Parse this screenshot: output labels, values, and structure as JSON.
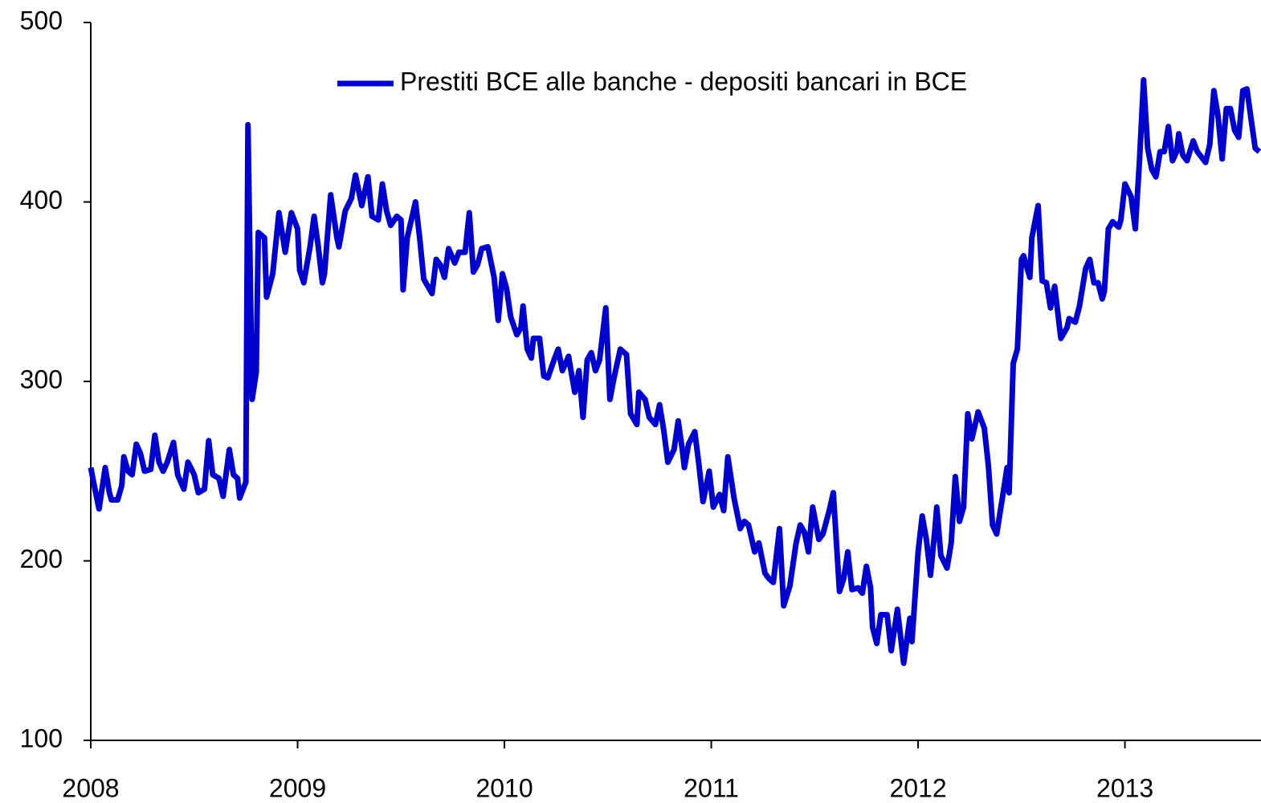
{
  "chart_data": {
    "type": "line",
    "x": [
      2008.0,
      2008.02,
      2008.04,
      2008.07,
      2008.09,
      2008.1,
      2008.13,
      2008.15,
      2008.16,
      2008.18,
      2008.2,
      2008.22,
      2008.24,
      2008.26,
      2008.29,
      2008.31,
      2008.33,
      2008.35,
      2008.37,
      2008.4,
      2008.42,
      2008.45,
      2008.47,
      2008.5,
      2008.52,
      2008.55,
      2008.57,
      2008.59,
      2008.62,
      2008.64,
      2008.67,
      2008.69,
      2008.71,
      2008.72,
      2008.75,
      2008.76,
      2008.78,
      2008.8,
      2008.81,
      2008.84,
      2008.85,
      2008.88,
      2008.91,
      2008.94,
      2008.97,
      2009.0,
      2009.01,
      2009.03,
      2009.06,
      2009.08,
      2009.1,
      2009.12,
      2009.13,
      2009.16,
      2009.19,
      2009.2,
      2009.23,
      2009.26,
      2009.28,
      2009.31,
      2009.34,
      2009.36,
      2009.39,
      2009.41,
      2009.43,
      2009.45,
      2009.48,
      2009.5,
      2009.51,
      2009.53,
      2009.57,
      2009.59,
      2009.61,
      2009.65,
      2009.67,
      2009.69,
      2009.71,
      2009.73,
      2009.76,
      2009.78,
      2009.81,
      2009.83,
      2009.85,
      2009.87,
      2009.89,
      2009.92,
      2009.95,
      2009.97,
      2009.99,
      2010.01,
      2010.03,
      2010.06,
      2010.08,
      2010.09,
      2010.11,
      2010.13,
      2010.14,
      2010.17,
      2010.19,
      2010.21,
      2010.24,
      2010.26,
      2010.28,
      2010.31,
      2010.32,
      2010.34,
      2010.36,
      2010.38,
      2010.4,
      2010.42,
      2010.44,
      2010.46,
      2010.49,
      2010.51,
      2010.53,
      2010.56,
      2010.59,
      2010.61,
      2010.64,
      2010.65,
      2010.68,
      2010.7,
      2010.73,
      2010.75,
      2010.77,
      2010.79,
      2010.82,
      2010.84,
      2010.86,
      2010.87,
      2010.89,
      2010.92,
      2010.94,
      2010.96,
      2010.99,
      2011.01,
      2011.04,
      2011.06,
      2011.08,
      2011.11,
      2011.14,
      2011.16,
      2011.18,
      2011.21,
      2011.23,
      2011.26,
      2011.28,
      2011.3,
      2011.33,
      2011.35,
      2011.38,
      2011.41,
      2011.43,
      2011.45,
      2011.47,
      2011.49,
      2011.52,
      2011.54,
      2011.57,
      2011.59,
      2011.62,
      2011.64,
      2011.66,
      2011.68,
      2011.71,
      2011.73,
      2011.75,
      2011.77,
      2011.78,
      2011.8,
      2011.82,
      2011.85,
      2011.87,
      2011.9,
      2011.93,
      2011.96,
      2011.97,
      2012.0,
      2012.02,
      2012.04,
      2012.06,
      2012.08,
      2012.09,
      2012.11,
      2012.14,
      2012.16,
      2012.18,
      2012.2,
      2012.22,
      2012.24,
      2012.26,
      2012.29,
      2012.32,
      2012.34,
      2012.36,
      2012.38,
      2012.41,
      2012.43,
      2012.44,
      2012.46,
      2012.48,
      2012.5,
      2012.51,
      2012.54,
      2012.55,
      2012.58,
      2012.6,
      2012.62,
      2012.64,
      2012.66,
      2012.69,
      2012.72,
      2012.73,
      2012.76,
      2012.78,
      2012.81,
      2012.83,
      2012.85,
      2012.87,
      2012.89,
      2012.9,
      2012.92,
      2012.94,
      2012.97,
      2012.98,
      2013.0,
      2013.03,
      2013.05,
      2013.07,
      2013.09,
      2013.11,
      2013.13,
      2013.15,
      2013.17,
      2013.19,
      2013.21,
      2013.23,
      2013.25,
      2013.26,
      2013.28,
      2013.3,
      2013.33,
      2013.35,
      2013.37,
      2013.39,
      2013.41,
      2013.43,
      2013.45,
      2013.47,
      2013.49,
      2013.51,
      2013.53,
      2013.55,
      2013.57,
      2013.59,
      2013.61,
      2013.63,
      2013.65
    ],
    "series": [
      {
        "name": "Prestiti BCE alle banche - depositi bancari in BCE",
        "color": "#0000cc",
        "values": [
          252,
          240,
          229,
          252,
          238,
          234,
          234,
          242,
          258,
          250,
          248,
          265,
          260,
          250,
          251,
          270,
          255,
          250,
          255,
          266,
          248,
          240,
          255,
          248,
          238,
          240,
          267,
          248,
          246,
          236,
          262,
          248,
          246,
          235,
          244,
          443,
          290,
          305,
          383,
          380,
          347,
          360,
          394,
          372,
          394,
          385,
          362,
          355,
          375,
          392,
          375,
          355,
          360,
          404,
          380,
          375,
          395,
          402,
          415,
          398,
          414,
          392,
          390,
          410,
          395,
          387,
          392,
          390,
          351,
          380,
          400,
          380,
          357,
          349,
          368,
          365,
          358,
          374,
          366,
          372,
          372,
          394,
          361,
          365,
          374,
          375,
          358,
          334,
          360,
          352,
          336,
          326,
          330,
          342,
          318,
          313,
          324,
          324,
          303,
          302,
          312,
          318,
          306,
          314,
          307,
          294,
          306,
          280,
          312,
          316,
          306,
          312,
          341,
          290,
          302,
          318,
          315,
          282,
          276,
          294,
          290,
          280,
          276,
          287,
          273,
          255,
          262,
          278,
          262,
          252,
          265,
          272,
          254,
          233,
          250,
          230,
          237,
          228,
          258,
          235,
          218,
          222,
          220,
          205,
          210,
          193,
          190,
          188,
          218,
          175,
          186,
          210,
          220,
          216,
          205,
          230,
          212,
          215,
          228,
          238,
          183,
          190,
          205,
          184,
          185,
          182,
          197,
          185,
          163,
          154,
          170,
          170,
          150,
          173,
          143,
          168,
          155,
          205,
          225,
          212,
          192,
          216,
          230,
          203,
          196,
          210,
          247,
          222,
          230,
          282,
          268,
          283,
          274,
          253,
          220,
          215,
          237,
          252,
          238,
          310,
          318,
          368,
          370,
          358,
          380,
          398,
          356,
          355,
          341,
          353,
          324,
          330,
          335,
          333,
          342,
          363,
          368,
          355,
          355,
          346,
          350,
          385,
          389,
          386,
          390,
          410,
          403,
          385,
          422,
          468,
          430,
          418,
          414,
          428,
          428,
          442,
          423,
          428,
          438,
          426,
          423,
          434,
          428,
          425,
          422,
          432,
          462,
          448,
          424,
          452,
          452,
          440,
          436,
          462,
          463,
          446,
          430,
          428
        ]
      }
    ],
    "xlim": [
      2008,
      2013.65
    ],
    "xticks": [
      2008,
      2009,
      2010,
      2011,
      2012,
      2013
    ],
    "ylim": [
      100,
      500
    ],
    "yticks": [
      100,
      200,
      300,
      400,
      500
    ],
    "legend": "upper center",
    "grid": false
  }
}
